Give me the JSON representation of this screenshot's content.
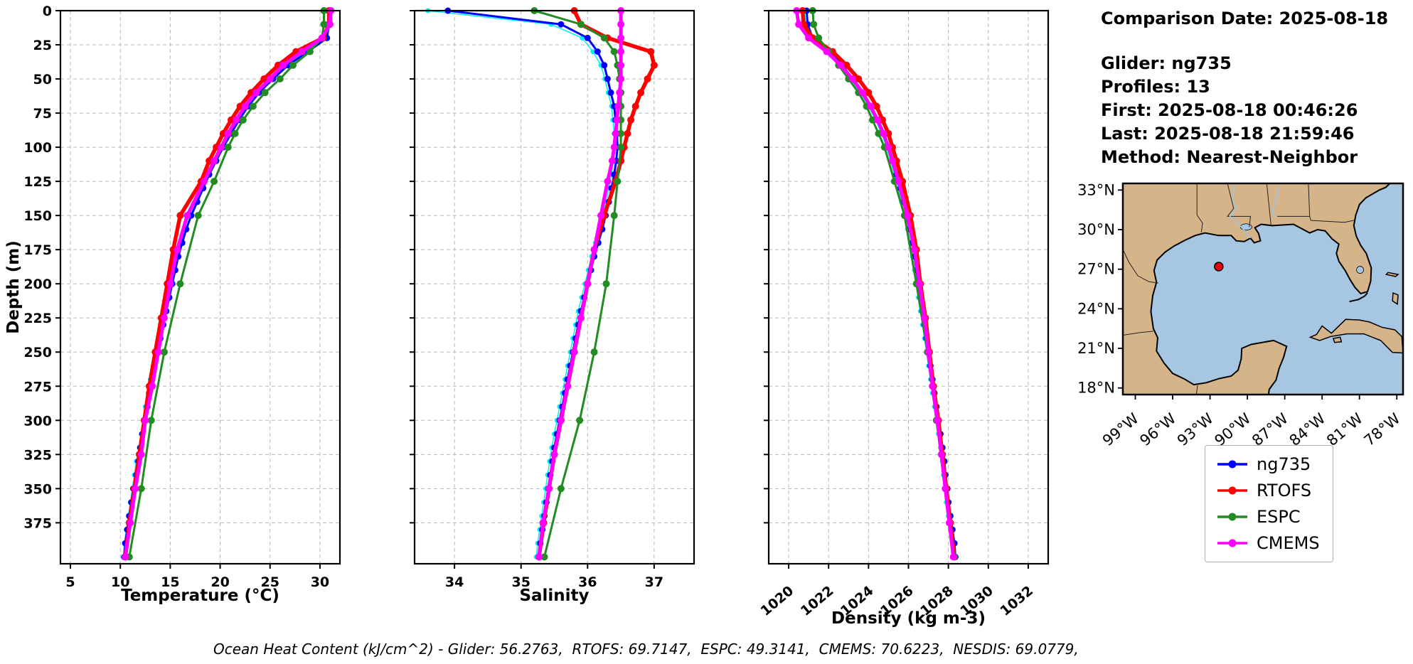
{
  "info": {
    "comparison_date": "Comparison Date: 2025-08-18",
    "glider": "Glider: ng735",
    "profiles": "Profiles: 13",
    "first": "First: 2025-08-18 00:46:26",
    "last": "Last: 2025-08-18 21:59:46",
    "method": "Method: Nearest-Neighbor"
  },
  "footer": {
    "text": "Ocean Heat Content (kJ/cm^2) - Glider: 56.2763,  RTOFS: 69.7147,  ESPC: 49.3141,  CMEMS: 70.6223,  NESDIS: 69.0779,"
  },
  "legend": {
    "items": [
      {
        "label": "ng735",
        "color": "#0000FF"
      },
      {
        "label": "RTOFS",
        "color": "#FF0000"
      },
      {
        "label": "ESPC",
        "color": "#228B22"
      },
      {
        "label": "CMEMS",
        "color": "#FF00FF"
      }
    ]
  },
  "map": {
    "water_color": "#A7C6E2",
    "land_color": "#D5B48A",
    "extent": {
      "lon": [
        -100,
        -77.5
      ],
      "lat": [
        17.5,
        33.5
      ]
    },
    "lat_ticks": [
      {
        "value": 33,
        "label": "33°N"
      },
      {
        "value": 30,
        "label": "30°N"
      },
      {
        "value": 27,
        "label": "27°N"
      },
      {
        "value": 24,
        "label": "24°N"
      },
      {
        "value": 21,
        "label": "21°N"
      },
      {
        "value": 18,
        "label": "18°N"
      }
    ],
    "lon_ticks": [
      {
        "value": -99,
        "label": "99°W"
      },
      {
        "value": -96,
        "label": "96°W"
      },
      {
        "value": -93,
        "label": "93°W"
      },
      {
        "value": -90,
        "label": "90°W"
      },
      {
        "value": -87,
        "label": "87°W"
      },
      {
        "value": -84,
        "label": "84°W"
      },
      {
        "value": -81,
        "label": "81°W"
      },
      {
        "value": -78,
        "label": "78°W"
      }
    ],
    "marker": {
      "lon": -92.3,
      "lat": 27.2,
      "color": "#E8000B"
    }
  },
  "chart_data": {
    "type": "line",
    "note": "Vertical ocean profiles: depth on y (increasing downward), variable on x",
    "depth_axis": {
      "label": "Depth (m)",
      "lim": [
        0,
        405
      ],
      "ticks": [
        0,
        25,
        50,
        75,
        100,
        125,
        150,
        175,
        200,
        225,
        250,
        275,
        300,
        325,
        350,
        375
      ]
    },
    "depth_levels": {
      "glider": [
        0,
        10,
        20,
        30,
        40,
        50,
        60,
        70,
        80,
        90,
        100,
        110,
        120,
        130,
        140,
        150,
        160,
        170,
        180,
        190,
        200,
        210,
        220,
        230,
        240,
        250,
        260,
        270,
        280,
        290,
        300,
        310,
        320,
        330,
        340,
        350,
        360,
        370,
        380,
        390,
        400
      ],
      "rtofs": [
        0,
        10,
        20,
        30,
        40,
        50,
        60,
        70,
        80,
        90,
        100,
        110,
        125,
        150,
        175,
        200,
        225,
        250,
        275,
        300,
        325,
        350,
        375,
        400
      ],
      "espc": [
        0,
        10,
        20,
        30,
        40,
        50,
        60,
        70,
        80,
        90,
        100,
        125,
        150,
        200,
        250,
        300,
        350,
        400
      ],
      "cmems": [
        0,
        10,
        20,
        30,
        40,
        50,
        60,
        70,
        80,
        90,
        100,
        110,
        125,
        150,
        175,
        200,
        225,
        250,
        275,
        300,
        325,
        350,
        375,
        400
      ]
    },
    "charts": [
      {
        "xlabel": "Temperature (°C)",
        "xlim": [
          4,
          32
        ],
        "xticks": [
          5,
          10,
          15,
          20,
          25,
          30
        ],
        "grid": true,
        "series": [
          {
            "name": "glider-profiles",
            "color": "#00EEEE",
            "in_legend": false,
            "lw": 1.5,
            "ms": 3.5,
            "depth_key": "glider",
            "values": [
              30.8,
              30.8,
              30.6,
              28.6,
              26.6,
              25.1,
              23.7,
              22.6,
              21.7,
              20.9,
              20.1,
              19.4,
              18.7,
              18.1,
              17.5,
              16.9,
              16.4,
              16.0,
              15.6,
              15.3,
              15.0,
              14.7,
              14.4,
              14.1,
              13.8,
              13.5,
              13.3,
              13.0,
              12.8,
              12.5,
              12.3,
              12.1,
              11.9,
              11.6,
              11.4,
              11.2,
              11.0,
              10.8,
              10.6,
              10.4,
              10.3
            ]
          },
          {
            "name": "ng735",
            "color": "#0000FF",
            "in_legend": true,
            "lw": 3,
            "ms": 4.5,
            "depth_key": "glider",
            "values": [
              30.9,
              30.9,
              30.7,
              28.8,
              26.8,
              25.3,
              23.9,
              22.8,
              21.9,
              21.1,
              20.3,
              19.6,
              18.9,
              18.3,
              17.7,
              17.1,
              16.6,
              16.2,
              15.8,
              15.5,
              15.2,
              14.9,
              14.6,
              14.3,
              14.0,
              13.7,
              13.4,
              13.2,
              12.9,
              12.7,
              12.4,
              12.2,
              12.0,
              11.8,
              11.6,
              11.3,
              11.1,
              10.9,
              10.7,
              10.5,
              10.4
            ]
          },
          {
            "name": "RTOFS",
            "color": "#FF0000",
            "in_legend": true,
            "lw": 5.5,
            "ms": 5,
            "depth_key": "rtofs",
            "values": [
              30.9,
              30.9,
              30.3,
              27.6,
              25.8,
              24.4,
              23.1,
              22.0,
              21.1,
              20.3,
              19.6,
              18.9,
              18.1,
              16.0,
              15.3,
              14.7,
              14.1,
              13.5,
              12.9,
              12.4,
              11.9,
              11.4,
              10.9,
              10.5
            ]
          },
          {
            "name": "ESPC",
            "color": "#228B22",
            "in_legend": true,
            "lw": 3,
            "ms": 5,
            "depth_key": "espc",
            "values": [
              30.4,
              30.4,
              30.2,
              29.0,
              27.3,
              26.0,
              24.5,
              23.3,
              22.3,
              21.5,
              20.8,
              19.4,
              17.8,
              16.0,
              14.4,
              13.1,
              12.1,
              10.9
            ]
          },
          {
            "name": "CMEMS",
            "color": "#FF00FF",
            "in_legend": true,
            "lw": 5,
            "ms": 5,
            "depth_key": "cmems",
            "values": [
              31.1,
              31.0,
              30.2,
              28.2,
              26.3,
              25.0,
              23.6,
              22.5,
              21.6,
              20.8,
              20.1,
              19.4,
              18.4,
              16.7,
              15.7,
              15.0,
              14.4,
              13.8,
              13.2,
              12.5,
              12.1,
              11.5,
              11.0,
              10.5
            ]
          }
        ]
      },
      {
        "xlabel": "Salinity",
        "xlim": [
          33.4,
          37.6
        ],
        "xticks": [
          34,
          35,
          36,
          37
        ],
        "grid": true,
        "series": [
          {
            "name": "glider-profiles",
            "color": "#00EEEE",
            "in_legend": false,
            "lw": 1.5,
            "ms": 3.5,
            "depth_key": "glider",
            "values": [
              33.6,
              35.45,
              35.92,
              36.08,
              36.2,
              36.26,
              36.31,
              36.36,
              36.38,
              36.4,
              36.41,
              36.39,
              36.36,
              36.32,
              36.28,
              36.23,
              36.18,
              36.12,
              36.06,
              36.01,
              35.96,
              35.91,
              35.86,
              35.82,
              35.78,
              35.74,
              35.7,
              35.66,
              35.62,
              35.58,
              35.54,
              35.5,
              35.46,
              35.43,
              35.4,
              35.37,
              35.34,
              35.31,
              35.28,
              35.25,
              35.23
            ]
          },
          {
            "name": "ng735",
            "color": "#0000FF",
            "in_legend": true,
            "lw": 3,
            "ms": 4.5,
            "depth_key": "glider",
            "values": [
              33.9,
              35.6,
              36.0,
              36.15,
              36.25,
              36.3,
              36.35,
              36.4,
              36.42,
              36.44,
              36.45,
              36.43,
              36.4,
              36.36,
              36.32,
              36.27,
              36.22,
              36.16,
              36.1,
              36.05,
              36.0,
              35.95,
              35.9,
              35.86,
              35.82,
              35.78,
              35.74,
              35.7,
              35.66,
              35.62,
              35.58,
              35.54,
              35.5,
              35.47,
              35.44,
              35.41,
              35.38,
              35.35,
              35.32,
              35.29,
              35.27
            ]
          },
          {
            "name": "RTOFS",
            "color": "#FF0000",
            "in_legend": true,
            "lw": 5.5,
            "ms": 5,
            "depth_key": "rtofs",
            "values": [
              35.8,
              35.9,
              36.3,
              36.95,
              37.0,
              36.9,
              36.8,
              36.72,
              36.65,
              36.6,
              36.55,
              36.5,
              36.42,
              36.25,
              36.1,
              36.0,
              35.9,
              35.8,
              35.7,
              35.6,
              35.5,
              35.42,
              35.34,
              35.27
            ]
          },
          {
            "name": "ESPC",
            "color": "#228B22",
            "in_legend": true,
            "lw": 3,
            "ms": 5,
            "depth_key": "espc",
            "values": [
              35.2,
              35.9,
              36.25,
              36.4,
              36.45,
              36.48,
              36.5,
              36.5,
              36.5,
              36.5,
              36.5,
              36.45,
              36.4,
              36.28,
              36.1,
              35.88,
              35.6,
              35.35
            ]
          },
          {
            "name": "CMEMS",
            "color": "#FF00FF",
            "in_legend": true,
            "lw": 5,
            "ms": 5,
            "depth_key": "cmems",
            "values": [
              36.5,
              36.5,
              36.5,
              36.5,
              36.5,
              36.5,
              36.48,
              36.46,
              36.44,
              36.42,
              36.4,
              36.37,
              36.3,
              36.2,
              36.1,
              36.0,
              35.9,
              35.8,
              35.7,
              35.6,
              35.5,
              35.42,
              35.33,
              35.27
            ]
          }
        ]
      },
      {
        "xlabel": "Density (kg m-3)",
        "xlim": [
          1019,
          1033
        ],
        "xticks": [
          1020,
          1022,
          1024,
          1026,
          1028,
          1030,
          1032
        ],
        "xtick_rotation": -40,
        "grid": true,
        "series": [
          {
            "name": "glider-profiles",
            "color": "#00EEEE",
            "in_legend": false,
            "lw": 1.5,
            "ms": 3.5,
            "depth_key": "glider",
            "values": [
              1020.8,
              1020.85,
              1021.1,
              1021.9,
              1022.6,
              1023.1,
              1023.6,
              1024.0,
              1024.35,
              1024.65,
              1024.9,
              1025.1,
              1025.3,
              1025.5,
              1025.65,
              1025.8,
              1025.95,
              1026.1,
              1026.2,
              1026.3,
              1026.4,
              1026.5,
              1026.6,
              1026.7,
              1026.8,
              1026.9,
              1027.0,
              1027.1,
              1027.2,
              1027.3,
              1027.4,
              1027.5,
              1027.6,
              1027.7,
              1027.75,
              1027.85,
              1027.9,
              1028.0,
              1028.1,
              1028.2,
              1028.25
            ]
          },
          {
            "name": "ng735",
            "color": "#0000FF",
            "in_legend": true,
            "lw": 3,
            "ms": 4.5,
            "depth_key": "glider",
            "values": [
              1020.9,
              1020.95,
              1021.2,
              1022.0,
              1022.7,
              1023.2,
              1023.7,
              1024.1,
              1024.45,
              1024.75,
              1025.0,
              1025.2,
              1025.4,
              1025.6,
              1025.75,
              1025.9,
              1026.05,
              1026.2,
              1026.3,
              1026.4,
              1026.5,
              1026.6,
              1026.7,
              1026.8,
              1026.9,
              1027.0,
              1027.1,
              1027.2,
              1027.3,
              1027.4,
              1027.5,
              1027.6,
              1027.7,
              1027.8,
              1027.85,
              1027.95,
              1028.0,
              1028.1,
              1028.2,
              1028.3,
              1028.35
            ]
          },
          {
            "name": "RTOFS",
            "color": "#FF0000",
            "in_legend": true,
            "lw": 5.5,
            "ms": 5,
            "depth_key": "rtofs",
            "values": [
              1020.7,
              1020.75,
              1021.2,
              1022.2,
              1022.9,
              1023.5,
              1024.0,
              1024.4,
              1024.7,
              1025.0,
              1025.2,
              1025.4,
              1025.7,
              1026.1,
              1026.4,
              1026.6,
              1026.85,
              1027.05,
              1027.25,
              1027.5,
              1027.7,
              1027.9,
              1028.1,
              1028.3
            ]
          },
          {
            "name": "ESPC",
            "color": "#228B22",
            "in_legend": true,
            "lw": 3,
            "ms": 5,
            "depth_key": "espc",
            "values": [
              1021.2,
              1021.25,
              1021.5,
              1022.0,
              1022.5,
              1023.0,
              1023.5,
              1023.9,
              1024.2,
              1024.5,
              1024.8,
              1025.3,
              1025.8,
              1026.4,
              1026.95,
              1027.4,
              1027.85,
              1028.3
            ]
          },
          {
            "name": "CMEMS",
            "color": "#FF00FF",
            "in_legend": true,
            "lw": 5,
            "ms": 5,
            "depth_key": "cmems",
            "values": [
              1020.4,
              1020.5,
              1021.0,
              1021.9,
              1022.6,
              1023.2,
              1023.7,
              1024.1,
              1024.45,
              1024.75,
              1025.0,
              1025.2,
              1025.5,
              1025.95,
              1026.3,
              1026.55,
              1026.8,
              1027.0,
              1027.2,
              1027.45,
              1027.65,
              1027.85,
              1028.05,
              1028.25
            ]
          }
        ]
      }
    ]
  }
}
